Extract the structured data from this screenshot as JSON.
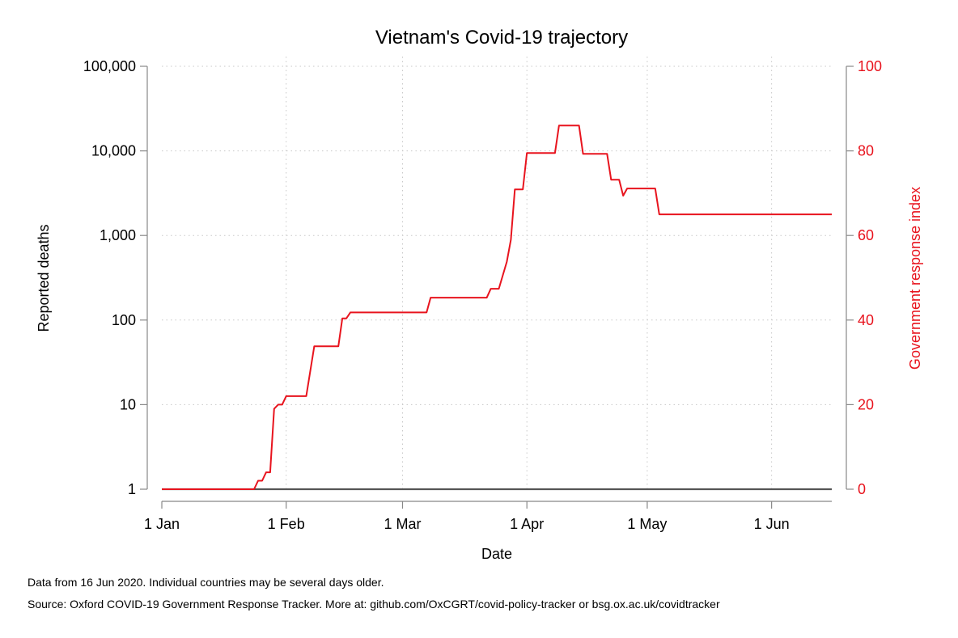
{
  "chart_data": {
    "type": "line",
    "title": "Vietnam's Covid-19 trajectory",
    "xlabel": "Date",
    "ylabel_left": "Reported deaths",
    "ylabel_right": "Government response index",
    "x_ticks": [
      {
        "date": "2020-01-01",
        "label": "1 Jan"
      },
      {
        "date": "2020-02-01",
        "label": "1 Feb"
      },
      {
        "date": "2020-03-01",
        "label": "1 Mar"
      },
      {
        "date": "2020-04-01",
        "label": "1 Apr"
      },
      {
        "date": "2020-05-01",
        "label": "1 May"
      },
      {
        "date": "2020-06-01",
        "label": "1 Jun"
      }
    ],
    "xlim": [
      "2020-01-01",
      "2020-06-16"
    ],
    "y_left": {
      "scale": "log",
      "ylim": [
        1,
        100000
      ],
      "ticks": [
        {
          "value": 1,
          "label": "1"
        },
        {
          "value": 10,
          "label": "10"
        },
        {
          "value": 100,
          "label": "100"
        },
        {
          "value": 1000,
          "label": "1,000"
        },
        {
          "value": 10000,
          "label": "10,000"
        },
        {
          "value": 100000,
          "label": "100,000"
        }
      ]
    },
    "y_right": {
      "scale": "linear",
      "ylim": [
        0,
        100
      ],
      "ticks": [
        {
          "value": 0,
          "label": "0"
        },
        {
          "value": 20,
          "label": "20"
        },
        {
          "value": 40,
          "label": "40"
        },
        {
          "value": 60,
          "label": "60"
        },
        {
          "value": 80,
          "label": "80"
        },
        {
          "value": 100,
          "label": "100"
        }
      ]
    },
    "grid": true,
    "series": [
      {
        "axis": "left",
        "color": "#555555",
        "points": [
          {
            "x": "2020-01-01",
            "y": 1
          },
          {
            "x": "2020-06-16",
            "y": 1
          }
        ]
      },
      {
        "axis": "right",
        "color": "#e8141e",
        "step": true,
        "points": [
          {
            "x": "2020-01-01",
            "y": 0
          },
          {
            "x": "2020-01-24",
            "y": 0
          },
          {
            "x": "2020-01-25",
            "y": 2
          },
          {
            "x": "2020-01-26",
            "y": 2
          },
          {
            "x": "2020-01-27",
            "y": 4
          },
          {
            "x": "2020-01-28",
            "y": 4
          },
          {
            "x": "2020-01-29",
            "y": 19
          },
          {
            "x": "2020-01-30",
            "y": 20
          },
          {
            "x": "2020-01-31",
            "y": 20
          },
          {
            "x": "2020-02-01",
            "y": 22
          },
          {
            "x": "2020-02-06",
            "y": 22
          },
          {
            "x": "2020-02-08",
            "y": 33.8
          },
          {
            "x": "2020-02-14",
            "y": 33.8
          },
          {
            "x": "2020-02-15",
            "y": 40.4
          },
          {
            "x": "2020-02-16",
            "y": 40.4
          },
          {
            "x": "2020-02-17",
            "y": 41.8
          },
          {
            "x": "2020-03-07",
            "y": 41.8
          },
          {
            "x": "2020-03-08",
            "y": 45.3
          },
          {
            "x": "2020-03-22",
            "y": 45.3
          },
          {
            "x": "2020-03-23",
            "y": 47.4
          },
          {
            "x": "2020-03-25",
            "y": 47.4
          },
          {
            "x": "2020-03-27",
            "y": 53.8
          },
          {
            "x": "2020-03-28",
            "y": 59
          },
          {
            "x": "2020-03-29",
            "y": 70.9
          },
          {
            "x": "2020-03-31",
            "y": 70.9
          },
          {
            "x": "2020-04-01",
            "y": 79.5
          },
          {
            "x": "2020-04-08",
            "y": 79.5
          },
          {
            "x": "2020-04-09",
            "y": 86
          },
          {
            "x": "2020-04-14",
            "y": 86
          },
          {
            "x": "2020-04-15",
            "y": 79.3
          },
          {
            "x": "2020-04-21",
            "y": 79.3
          },
          {
            "x": "2020-04-22",
            "y": 73.2
          },
          {
            "x": "2020-04-24",
            "y": 73.2
          },
          {
            "x": "2020-04-25",
            "y": 69.4
          },
          {
            "x": "2020-04-26",
            "y": 71.1
          },
          {
            "x": "2020-05-03",
            "y": 71.1
          },
          {
            "x": "2020-05-04",
            "y": 65
          },
          {
            "x": "2020-06-16",
            "y": 65
          }
        ]
      }
    ]
  },
  "notes": {
    "line1": "Data from 16 Jun 2020. Individual countries may be several days older.",
    "line2": "Source: Oxford COVID-19 Government Response Tracker. More at: github.com/OxCGRT/covid-policy-tracker or bsg.ox.ac.uk/covidtracker"
  }
}
